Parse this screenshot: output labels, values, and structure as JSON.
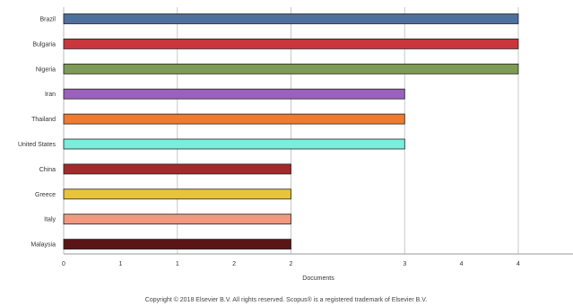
{
  "chart_data": {
    "type": "bar",
    "orientation": "horizontal",
    "categories": [
      "Brazil",
      "Bulgaria",
      "Nigeria",
      "Iran",
      "Thailand",
      "United States",
      "China",
      "Greece",
      "Italy",
      "Malaysia"
    ],
    "values": [
      4,
      4,
      4,
      3,
      3,
      3,
      2,
      2,
      2,
      2
    ],
    "bar_colors": [
      "#4f6f9f",
      "#c9363e",
      "#7f9a56",
      "#9a61bd",
      "#ee7b30",
      "#79eedc",
      "#a32a2a",
      "#e7c43a",
      "#f09980",
      "#5a1616"
    ],
    "x_ticks": [
      "0",
      "1",
      "1",
      "2",
      "2",
      "3",
      "4",
      "4"
    ],
    "x_tick_values": [
      0,
      0.5,
      1,
      1.5,
      2,
      3,
      3.5,
      4
    ],
    "xlabel": "Documents",
    "ylabel": "",
    "xlim": [
      0,
      4.5
    ],
    "grid": true,
    "legend": "none"
  },
  "footer": {
    "copyright": "Copyright © 2018 Elsevier B.V. All rights reserved. Scopus® is a registered trademark of Elsevier B.V."
  }
}
